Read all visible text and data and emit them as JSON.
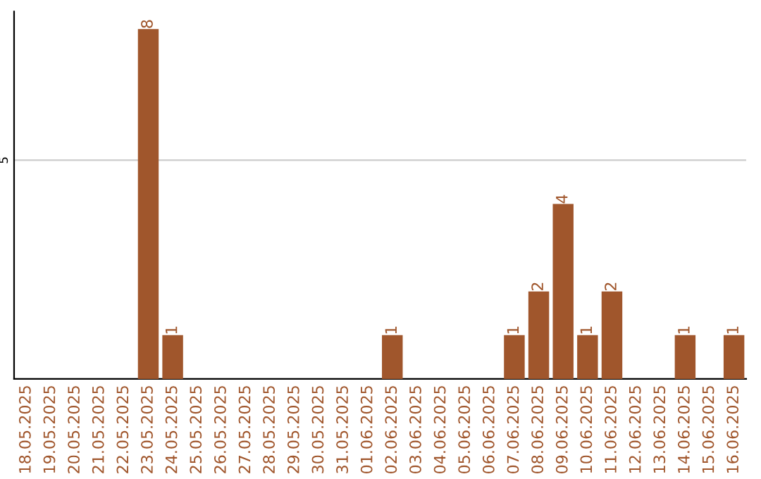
{
  "chart_data": {
    "type": "bar",
    "categories": [
      "18.05.2025",
      "19.05.2025",
      "20.05.2025",
      "21.05.2025",
      "22.05.2025",
      "23.05.2025",
      "24.05.2025",
      "25.05.2025",
      "26.05.2025",
      "27.05.2025",
      "28.05.2025",
      "29.05.2025",
      "30.05.2025",
      "31.05.2025",
      "01.06.2025",
      "02.06.2025",
      "03.06.2025",
      "04.06.2025",
      "05.06.2025",
      "06.06.2025",
      "07.06.2025",
      "08.06.2025",
      "09.06.2025",
      "10.06.2025",
      "11.06.2025",
      "12.06.2025",
      "13.06.2025",
      "14.06.2025",
      "15.06.2025",
      "16.06.2025"
    ],
    "values": [
      0,
      0,
      0,
      0,
      0,
      8,
      1,
      0,
      0,
      0,
      0,
      0,
      0,
      0,
      0,
      1,
      0,
      0,
      0,
      0,
      1,
      2,
      4,
      1,
      2,
      0,
      0,
      1,
      0,
      1
    ],
    "color": "#a0562c",
    "value_labels": [
      null,
      null,
      null,
      null,
      null,
      "8",
      "1",
      null,
      null,
      null,
      null,
      null,
      null,
      null,
      null,
      "1",
      null,
      null,
      null,
      null,
      "1",
      "2",
      "4",
      "1",
      "2",
      null,
      null,
      "1",
      null,
      "1"
    ],
    "ylim": [
      0,
      8.4
    ],
    "yticks": [
      5
    ],
    "grid": "y",
    "legend": false
  }
}
